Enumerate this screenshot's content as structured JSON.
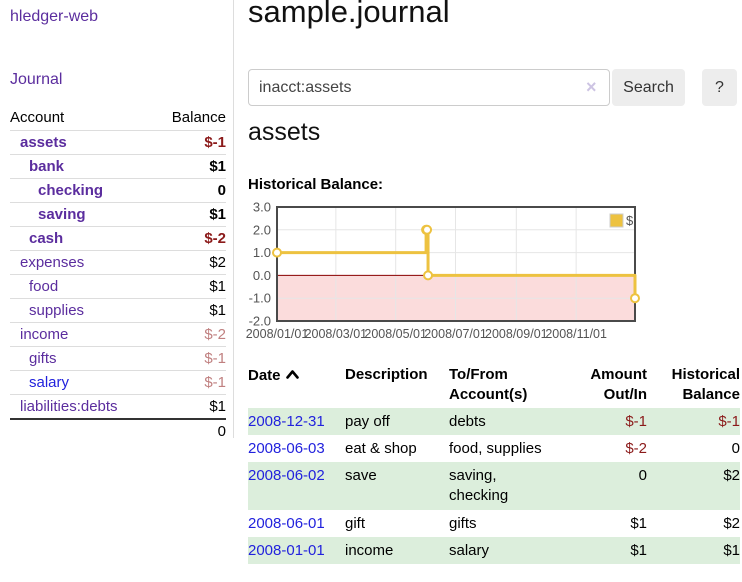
{
  "app": {
    "title": "hledger-web",
    "nav": {
      "journal_label": "Journal"
    }
  },
  "colors": {
    "link_purple": "#5b2d9e",
    "link_blue": "#2222dd",
    "negative_strong": "#8b1a1a",
    "negative_weak": "#c08080",
    "row_stripe_green": "#dceedc",
    "chart_line_yellow": "#edc240",
    "chart_negative_region": "#fbdcdc",
    "chart_zero_line": "#8b0000"
  },
  "sidebar": {
    "table": {
      "headers": {
        "account": "Account",
        "balance": "Balance"
      },
      "rows": [
        {
          "account": "assets",
          "balance": "$-1",
          "level": 1,
          "bold": true,
          "balance_style": "neg-strong",
          "link_color": "purple"
        },
        {
          "account": "bank",
          "balance": "$1",
          "level": 2,
          "bold": true,
          "balance_style": "pos-strong",
          "link_color": "purple"
        },
        {
          "account": "checking",
          "balance": "0",
          "level": 3,
          "bold": true,
          "balance_style": "pos-strong",
          "link_color": "purple"
        },
        {
          "account": "saving",
          "balance": "$1",
          "level": 3,
          "bold": true,
          "balance_style": "pos-strong",
          "link_color": "purple"
        },
        {
          "account": "cash",
          "balance": "$-2",
          "level": 2,
          "bold": true,
          "balance_style": "neg-strong",
          "link_color": "purple"
        },
        {
          "account": "expenses",
          "balance": "$2",
          "level": 1,
          "bold": false,
          "balance_style": "pos",
          "link_color": "purple"
        },
        {
          "account": "food",
          "balance": "$1",
          "level": 2,
          "bold": false,
          "balance_style": "pos",
          "link_color": "purple"
        },
        {
          "account": "supplies",
          "balance": "$1",
          "level": 2,
          "bold": false,
          "balance_style": "pos",
          "link_color": "purple"
        },
        {
          "account": "income",
          "balance": "$-2",
          "level": 1,
          "bold": false,
          "balance_style": "neg-weak",
          "link_color": "purple"
        },
        {
          "account": "gifts",
          "balance": "$-1",
          "level": 2,
          "bold": false,
          "balance_style": "neg-weak",
          "link_color": "purple"
        },
        {
          "account": "salary",
          "balance": "$-1",
          "level": 2,
          "bold": false,
          "balance_style": "neg-weak",
          "link_color": "blue"
        },
        {
          "account": "liabilities:debts",
          "balance": "$1",
          "level": 1,
          "bold": false,
          "balance_style": "pos",
          "link_color": "purple"
        }
      ],
      "total": "0"
    }
  },
  "main": {
    "title": "sample.journal",
    "search": {
      "value": "inacct:assets",
      "clear_icon": "×",
      "search_button_label": "Search",
      "help_button_label": "?"
    },
    "account_heading": "assets",
    "chart_label": "Historical Balance:",
    "register_table": {
      "headers": {
        "date": "Date",
        "description": "Description",
        "accounts": "To/From Account(s)",
        "amount": "Amount Out/In",
        "balance": "Historical Balance"
      },
      "sort": {
        "column": "date",
        "direction": "ascending"
      },
      "rows": [
        {
          "date": "2008-12-31",
          "description": "pay off",
          "accounts": "debts",
          "amount": "$-1",
          "amount_negative": true,
          "balance": "$-1",
          "balance_negative": true
        },
        {
          "date": "2008-06-03",
          "description": "eat & shop",
          "accounts": "food, supplies",
          "amount": "$-2",
          "amount_negative": true,
          "balance": "0",
          "balance_negative": false
        },
        {
          "date": "2008-06-02",
          "description": "save",
          "accounts": "saving, checking",
          "amount": "0",
          "amount_negative": false,
          "balance": "$2",
          "balance_negative": false
        },
        {
          "date": "2008-06-01",
          "description": "gift",
          "accounts": "gifts",
          "amount": "$1",
          "amount_negative": false,
          "balance": "$2",
          "balance_negative": false
        },
        {
          "date": "2008-01-01",
          "description": "income",
          "accounts": "salary",
          "amount": "$1",
          "amount_negative": false,
          "balance": "$1",
          "balance_negative": false
        }
      ]
    }
  },
  "chart_data": {
    "type": "line",
    "step": true,
    "title": "Historical Balance:",
    "series": [
      {
        "name": "$",
        "color": "#edc240",
        "points": [
          {
            "x": "2008-01-01",
            "y": 1
          },
          {
            "x": "2008-06-01",
            "y": 2
          },
          {
            "x": "2008-06-02",
            "y": 2
          },
          {
            "x": "2008-06-03",
            "y": 0
          },
          {
            "x": "2008-12-31",
            "y": -1
          }
        ],
        "points_days": [
          [
            0,
            1
          ],
          [
            152,
            2
          ],
          [
            153,
            2
          ],
          [
            154,
            0
          ],
          [
            365,
            -1
          ]
        ]
      }
    ],
    "x_ticks": [
      "2008/01/01",
      "2008/03/01",
      "2008/05/01",
      "2008/07/01",
      "2008/09/01",
      "2008/11/01"
    ],
    "x_tick_days": [
      0,
      60,
      121,
      182,
      244,
      305
    ],
    "x_range_days": [
      0,
      365
    ],
    "y_ticks": [
      "3.0",
      "2.0",
      "1.0",
      "0.0",
      "-1.0",
      "-2.0"
    ],
    "ylim": [
      -2,
      3
    ],
    "grid": true,
    "negative_region_below_zero": true,
    "legend": {
      "label": "$",
      "position": "top-right"
    }
  }
}
